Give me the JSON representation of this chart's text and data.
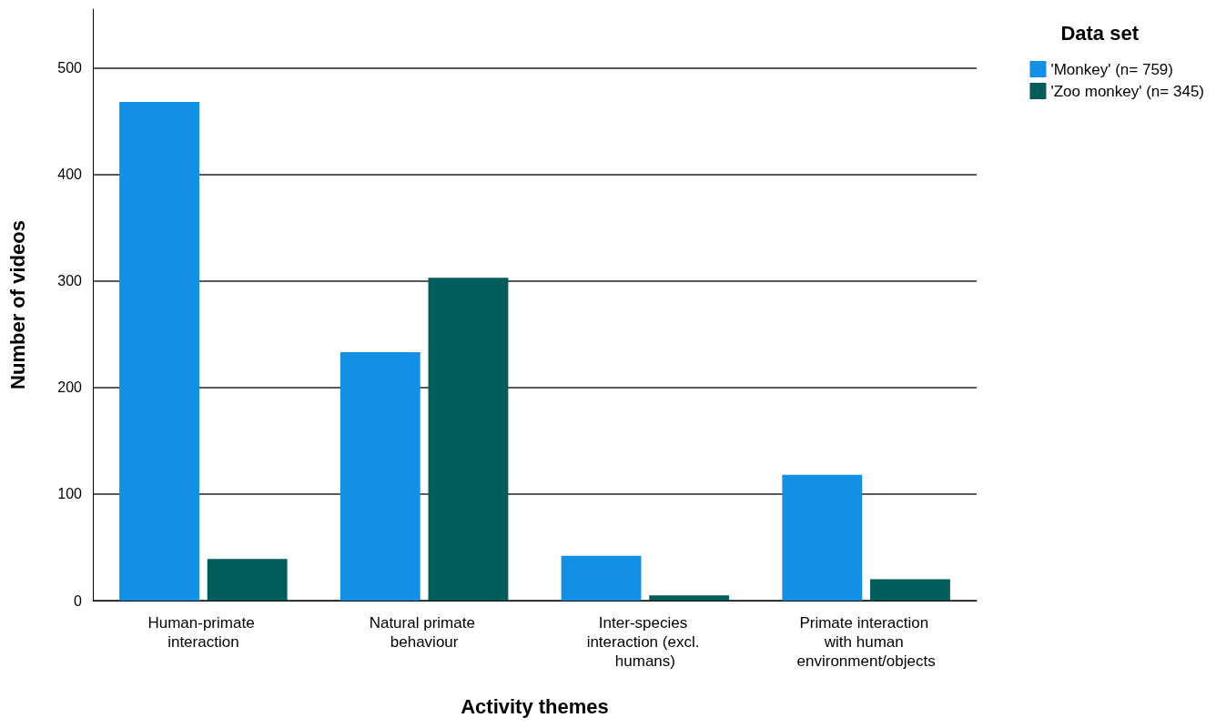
{
  "chart_data": {
    "type": "bar",
    "xlabel": "Activity themes",
    "ylabel": "Number of videos",
    "legend_title": "Data set",
    "categories": [
      "Human-primate interaction",
      "Natural primate behaviour",
      "Inter-species interaction (excl. humans)",
      "Primate interaction with human environment/objects"
    ],
    "series": [
      {
        "name": "'Monkey' (n= 759)",
        "color": "#1190e6",
        "values": [
          468,
          233,
          42,
          118
        ]
      },
      {
        "name": "'Zoo monkey' (n= 345)",
        "color": "#015d5b",
        "values": [
          39,
          303,
          5,
          20
        ]
      }
    ],
    "ylim": [
      0,
      555
    ],
    "yticks": [
      0,
      100,
      200,
      300,
      400,
      500
    ],
    "grid": "y",
    "legend": "top right"
  }
}
